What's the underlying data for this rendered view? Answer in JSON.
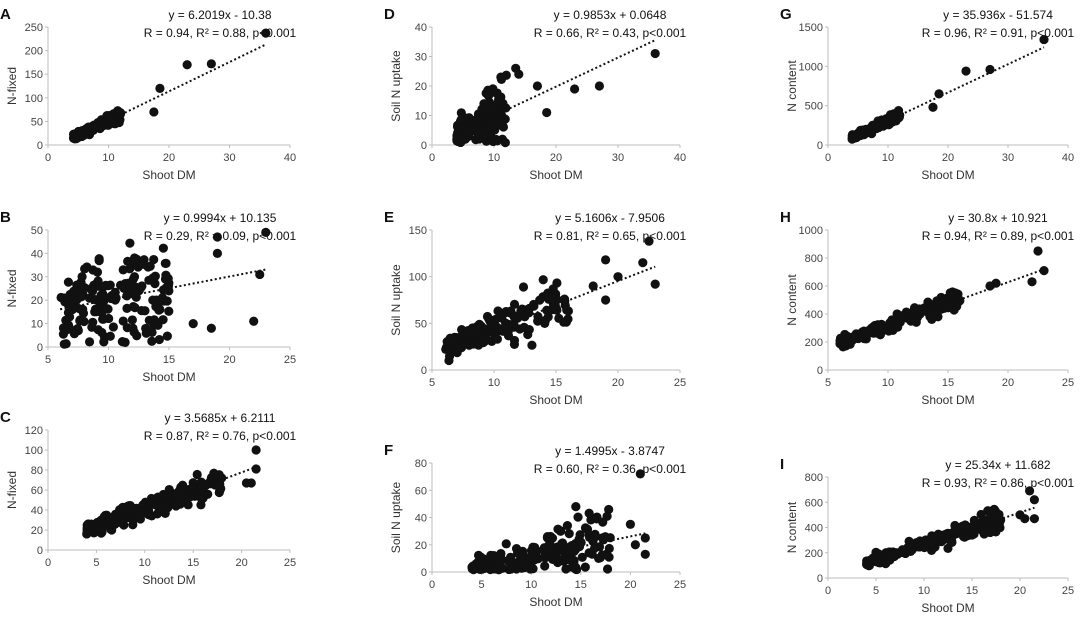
{
  "colors": {
    "points": "#111111",
    "axis": "#bdbdbd",
    "text": "#333333"
  },
  "chart_data": [
    {
      "id": "A",
      "type": "scatter",
      "label": "A",
      "xlabel": "Shoot DM",
      "ylabel": "N-fixed",
      "xlim": [
        0,
        40
      ],
      "xticks": [
        0,
        10,
        20,
        30,
        40
      ],
      "ylim": [
        0,
        250
      ],
      "yticks": [
        0,
        50,
        100,
        150,
        200,
        250
      ],
      "equation": "y = 6.2019x - 10.38",
      "stats": "R = 0.94, R² = 0.88, p<0.001",
      "fit": {
        "slope": 6.2019,
        "intercept": -10.38,
        "x_range": [
          4,
          36
        ]
      },
      "gen": {
        "n": 150,
        "xmin": 4,
        "xmax": 12,
        "noise": 0.1,
        "jitter": 3,
        "seed": 11
      },
      "extra_points": [
        [
          17.5,
          70
        ],
        [
          18.5,
          120
        ],
        [
          23,
          170
        ],
        [
          27,
          172
        ],
        [
          36,
          237
        ]
      ]
    },
    {
      "id": "D",
      "type": "scatter",
      "label": "D",
      "xlabel": "Shoot DM",
      "ylabel": "Soil N uptake",
      "xlim": [
        0,
        40
      ],
      "xticks": [
        0,
        10,
        20,
        30,
        40
      ],
      "ylim": [
        0,
        40
      ],
      "yticks": [
        0,
        10,
        20,
        30,
        40
      ],
      "equation": "y = 0.9853x + 0.0648",
      "stats": "R = 0.66, R² = 0.43, p<0.001",
      "fit": {
        "slope": 0.9853,
        "intercept": 0.0648,
        "x_range": [
          4,
          36
        ]
      },
      "gen": {
        "n": 150,
        "xmin": 4,
        "xmax": 12,
        "noise": 0.45,
        "jitter": 1,
        "seed": 23
      },
      "extra_points": [
        [
          13.5,
          26
        ],
        [
          14,
          24
        ],
        [
          17,
          20
        ],
        [
          18.5,
          11
        ],
        [
          23,
          19
        ],
        [
          27,
          20
        ],
        [
          36,
          31
        ]
      ]
    },
    {
      "id": "G",
      "type": "scatter",
      "label": "G",
      "xlabel": "Shoot DM",
      "ylabel": "N content",
      "xlim": [
        0,
        40
      ],
      "xticks": [
        0,
        10,
        20,
        30,
        40
      ],
      "ylim": [
        0,
        1500
      ],
      "yticks": [
        0,
        500,
        1000,
        1500
      ],
      "equation": "y = 35.936x - 51.574",
      "stats": "R = 0.96, R² = 0.91, p<0.001",
      "fit": {
        "slope": 35.936,
        "intercept": -51.574,
        "x_range": [
          4,
          36
        ]
      },
      "gen": {
        "n": 150,
        "xmin": 4,
        "xmax": 12,
        "noise": 0.08,
        "jitter": 15,
        "seed": 37
      },
      "extra_points": [
        [
          17.5,
          480
        ],
        [
          18.5,
          650
        ],
        [
          23,
          940
        ],
        [
          27,
          960
        ],
        [
          36,
          1340
        ]
      ]
    },
    {
      "id": "B",
      "type": "scatter",
      "label": "B",
      "xlabel": "Shoot DM",
      "ylabel": "N-fixed",
      "xlim": [
        5,
        25
      ],
      "xticks": [
        5,
        10,
        15,
        20,
        25
      ],
      "ylim": [
        0,
        50
      ],
      "yticks": [
        0,
        10,
        20,
        30,
        40,
        50
      ],
      "equation": "y = 0.9994x + 10.135",
      "stats": "R = 0.29, R² = 0.09, p<0.001",
      "fit": {
        "slope": 0.9994,
        "intercept": 10.135,
        "x_range": [
          6,
          23
        ]
      },
      "gen": {
        "n": 170,
        "xmin": 6,
        "xmax": 15,
        "noise": 0.45,
        "jitter": 4,
        "seed": 41
      },
      "extra_points": [
        [
          17,
          10
        ],
        [
          18.5,
          8
        ],
        [
          19,
          40
        ],
        [
          19,
          47
        ],
        [
          22,
          11
        ],
        [
          22.5,
          31
        ],
        [
          23,
          49
        ]
      ]
    },
    {
      "id": "E",
      "type": "scatter",
      "label": "E",
      "xlabel": "Shoot DM",
      "ylabel": "Soil N uptake",
      "xlim": [
        5,
        25
      ],
      "xticks": [
        5,
        10,
        15,
        20,
        25
      ],
      "ylim": [
        0,
        150
      ],
      "yticks": [
        0,
        50,
        100,
        150
      ],
      "equation": "y = 5.1606x - 7.9506",
      "stats": "R = 0.81, R² = 0.65, p<0.001",
      "fit": {
        "slope": 5.1606,
        "intercept": -7.9506,
        "x_range": [
          6,
          23
        ]
      },
      "gen": {
        "n": 170,
        "xmin": 6,
        "xmax": 16,
        "noise": 0.16,
        "jitter": 5,
        "seed": 53
      },
      "extra_points": [
        [
          18,
          90
        ],
        [
          19,
          118
        ],
        [
          19,
          75
        ],
        [
          20,
          100
        ],
        [
          22,
          115
        ],
        [
          22.5,
          138
        ],
        [
          23,
          92
        ]
      ]
    },
    {
      "id": "H",
      "type": "scatter",
      "label": "H",
      "xlabel": "Shoot DM",
      "ylabel": "N content",
      "xlim": [
        5,
        25
      ],
      "xticks": [
        5,
        10,
        15,
        20,
        25
      ],
      "ylim": [
        0,
        1000
      ],
      "yticks": [
        0,
        200,
        400,
        600,
        800,
        1000
      ],
      "equation": "y = 30.8x + 10.921",
      "stats": "R = 0.94, R² = 0.89, p<0.001",
      "fit": {
        "slope": 30.8,
        "intercept": 10.921,
        "x_range": [
          6,
          23
        ]
      },
      "gen": {
        "n": 170,
        "xmin": 6,
        "xmax": 16,
        "noise": 0.07,
        "jitter": 12,
        "seed": 67
      },
      "extra_points": [
        [
          18.5,
          600
        ],
        [
          19,
          620
        ],
        [
          22,
          630
        ],
        [
          22.5,
          850
        ],
        [
          23,
          710
        ]
      ]
    },
    {
      "id": "C",
      "type": "scatter",
      "label": "C",
      "xlabel": "Shoot DM",
      "ylabel": "N-fixed",
      "xlim": [
        0,
        25
      ],
      "xticks": [
        0,
        5,
        10,
        15,
        20,
        25
      ],
      "ylim": [
        0,
        120
      ],
      "yticks": [
        0,
        20,
        40,
        60,
        80,
        100,
        120
      ],
      "equation": "y = 3.5685x + 6.2111",
      "stats": "R = 0.87, R² = 0.76, p<0.001",
      "fit": {
        "slope": 3.5685,
        "intercept": 6.2111,
        "x_range": [
          4,
          21.5
        ]
      },
      "gen": {
        "n": 200,
        "xmin": 4,
        "xmax": 18,
        "noise": 0.12,
        "jitter": 3,
        "seed": 71
      },
      "extra_points": [
        [
          20.5,
          67
        ],
        [
          21,
          67
        ],
        [
          21.5,
          81
        ],
        [
          21.5,
          100
        ]
      ]
    },
    {
      "id": "F",
      "type": "scatter",
      "label": "F",
      "xlabel": "Shoot DM",
      "ylabel": "Soil N uptake",
      "xlim": [
        0,
        25
      ],
      "xticks": [
        0,
        5,
        10,
        15,
        20,
        25
      ],
      "ylim": [
        0,
        80
      ],
      "yticks": [
        0,
        20,
        40,
        60,
        80
      ],
      "equation": "y = 1.4995x - 3.8747",
      "stats": "R = 0.60, R² = 0.36, p<0.001",
      "fit": {
        "slope": 1.4995,
        "intercept": -3.8747,
        "x_range": [
          4,
          21.5
        ]
      },
      "gen": {
        "n": 200,
        "xmin": 4,
        "xmax": 18,
        "noise": 0.55,
        "jitter": 2,
        "seed": 83
      },
      "extra_points": [
        [
          14.5,
          48
        ],
        [
          20,
          35
        ],
        [
          20.5,
          20
        ],
        [
          21,
          72
        ],
        [
          21.5,
          25
        ],
        [
          21.5,
          13
        ]
      ]
    },
    {
      "id": "I",
      "type": "scatter",
      "label": "I",
      "xlabel": "Shoot DM",
      "ylabel": "N content",
      "xlim": [
        0,
        25
      ],
      "xticks": [
        0,
        5,
        10,
        15,
        20,
        25
      ],
      "ylim": [
        0,
        800
      ],
      "yticks": [
        0,
        200,
        400,
        600,
        800
      ],
      "equation": "y = 25.34x + 11.682",
      "stats": "R = 0.93, R² = 0.86, p<0.001",
      "fit": {
        "slope": 25.34,
        "intercept": 11.682,
        "x_range": [
          4,
          21.5
        ]
      },
      "gen": {
        "n": 200,
        "xmin": 4,
        "xmax": 18,
        "noise": 0.1,
        "jitter": 12,
        "seed": 97
      },
      "extra_points": [
        [
          20,
          500
        ],
        [
          20.5,
          470
        ],
        [
          21,
          690
        ],
        [
          21.5,
          620
        ],
        [
          21.5,
          470
        ]
      ]
    }
  ]
}
